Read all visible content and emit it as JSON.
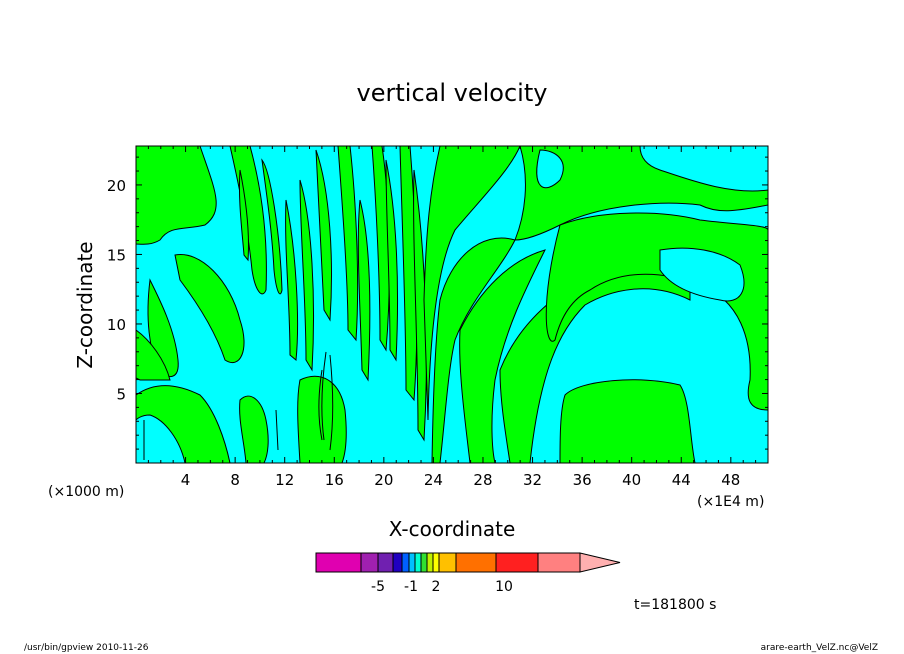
{
  "chart_data": {
    "type": "heatmap",
    "title": "vertical velocity",
    "xlabel": "X-coordinate",
    "ylabel": "Z-coordinate",
    "x_unit_left": "(×1000 m)",
    "x_unit_right": "(×1E4 m)",
    "xlim": [
      0,
      51
    ],
    "ylim": [
      0,
      22.8
    ],
    "x_ticks": [
      4,
      8,
      12,
      16,
      20,
      24,
      28,
      32,
      36,
      40,
      44,
      48
    ],
    "y_ticks": [
      5,
      10,
      15,
      20
    ],
    "grid": false,
    "time_label": "t=181800 s",
    "colorbar": {
      "colors": [
        "#e000b0",
        "#a020b0",
        "#7020b0",
        "#2000c0",
        "#0060ff",
        "#00c0ff",
        "#00ffd0",
        "#30e030",
        "#c0f000",
        "#ffff00",
        "#ffc000",
        "#ff7000",
        "#ff2020",
        "#ff8080",
        "#ffb0b0"
      ],
      "tick_labels": [
        "-5",
        "-1",
        "2",
        "10"
      ]
    },
    "fill_colors": {
      "negative": "#00ffff",
      "positive": "#00ff00"
    }
  },
  "footer": {
    "left": "/usr/bin/gpview  2010-11-26",
    "right": "arare-earth_VelZ.nc@VelZ"
  }
}
